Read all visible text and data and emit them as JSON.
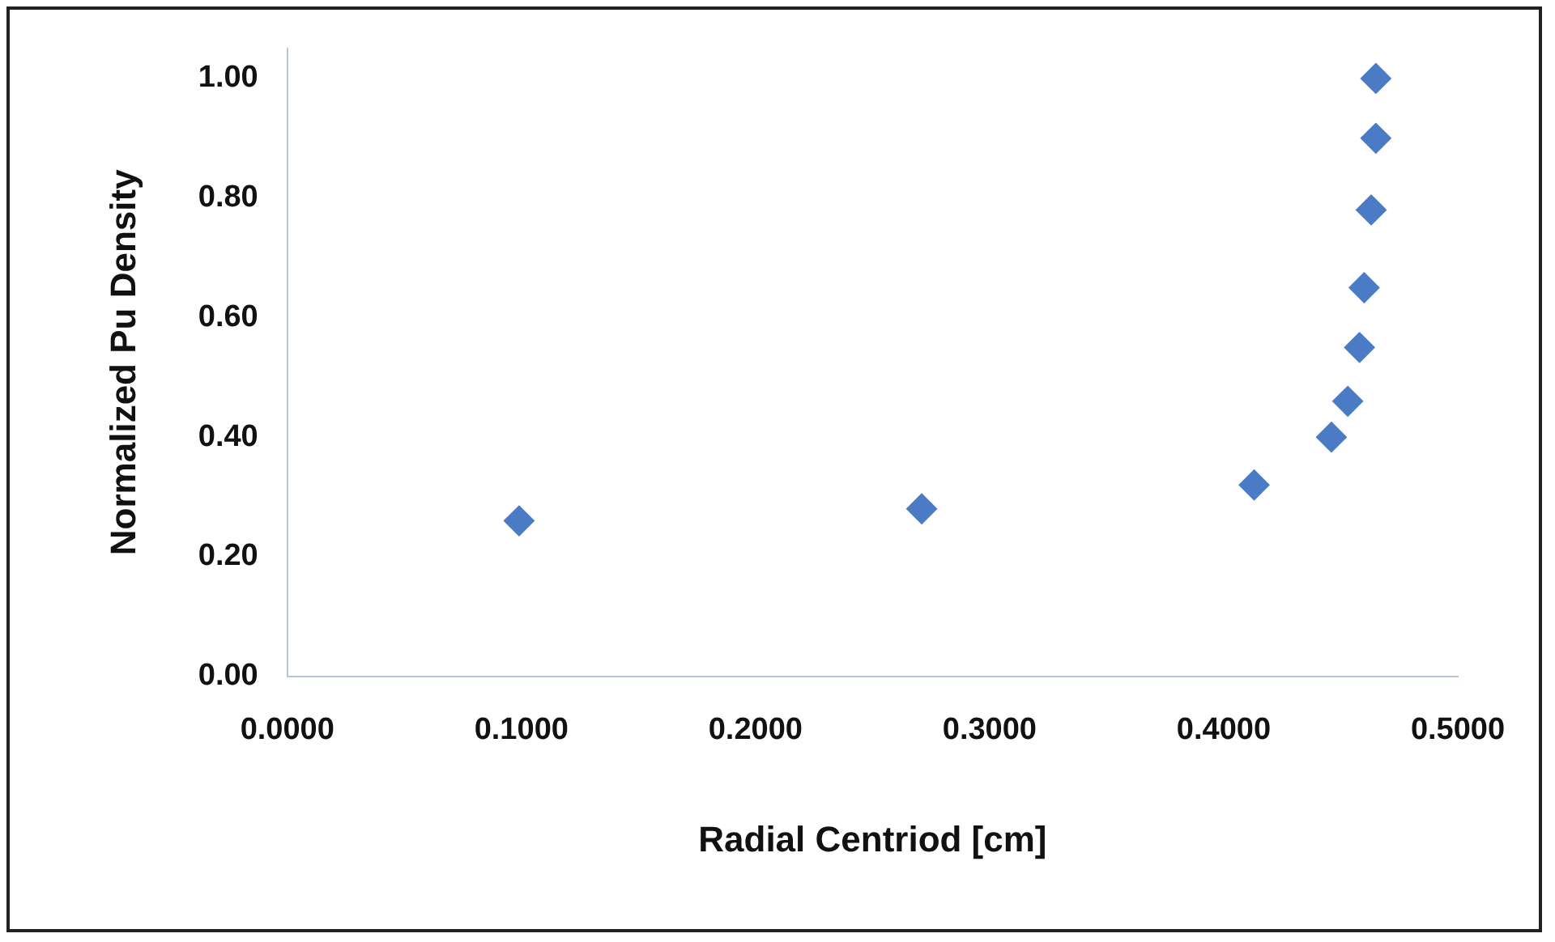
{
  "chart_data": {
    "type": "scatter",
    "xlabel": "Radial Centriod [cm]",
    "ylabel": "Normalized Pu Density",
    "x": [
      0.099,
      0.271,
      0.413,
      0.446,
      0.453,
      0.458,
      0.46,
      0.463,
      0.465,
      0.465
    ],
    "values": [
      0.26,
      0.28,
      0.32,
      0.4,
      0.46,
      0.55,
      0.65,
      0.78,
      0.9,
      1.0
    ],
    "color": "#4a7bc4",
    "marker": "diamond",
    "grid": false,
    "legend": false,
    "xlim": [
      0,
      0.5
    ],
    "xticks": [
      {
        "value": 0,
        "label": "0.0000"
      },
      {
        "value": 0.1,
        "label": "0.1000"
      },
      {
        "value": 0.2,
        "label": "0.2000"
      },
      {
        "value": 0.3,
        "label": "0.3000"
      },
      {
        "value": 0.4,
        "label": "0.4000"
      },
      {
        "value": 0.5,
        "label": "0.5000"
      }
    ],
    "ylim": [
      0,
      1.05
    ],
    "yticks": [
      {
        "value": 0,
        "label": "0.00"
      },
      {
        "value": 0.2,
        "label": "0.20"
      },
      {
        "value": 0.4,
        "label": "0.40"
      },
      {
        "value": 0.6,
        "label": "0.60"
      },
      {
        "value": 0.8,
        "label": "0.80"
      },
      {
        "value": 1,
        "label": "1.00"
      }
    ]
  }
}
